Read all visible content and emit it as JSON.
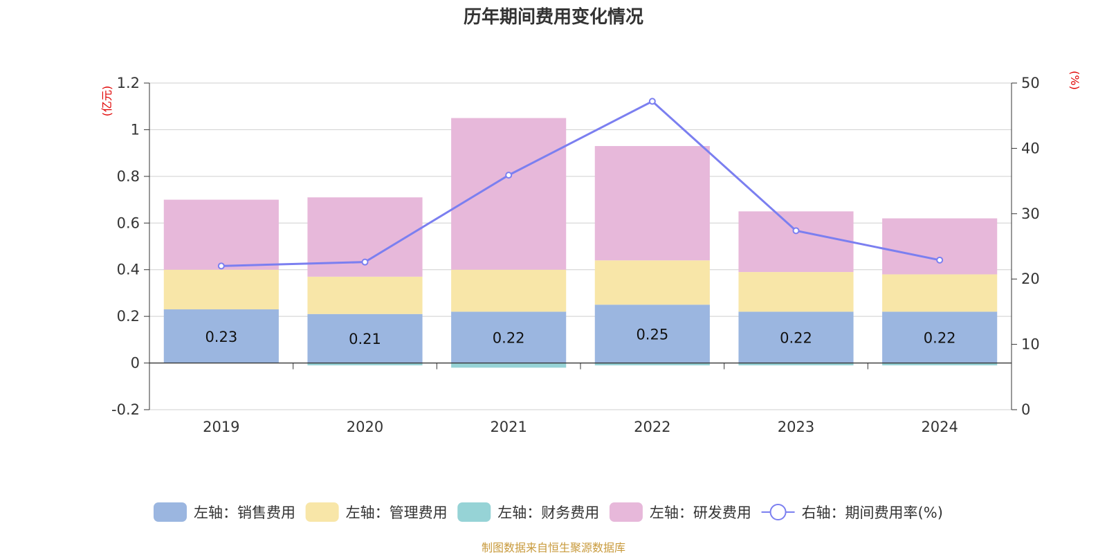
{
  "chart_data": {
    "type": "bar",
    "stacked": true,
    "title": "历年期间费用变化情况",
    "categories": [
      "2019",
      "2020",
      "2021",
      "2022",
      "2023",
      "2024"
    ],
    "left_axis": {
      "unit": "(亿元)",
      "ylim": [
        -0.2,
        1.2
      ],
      "ticks": [
        -0.2,
        0,
        0.2,
        0.4,
        0.6,
        0.8,
        1,
        1.2
      ]
    },
    "right_axis": {
      "unit": "(%)",
      "ylim": [
        0,
        50
      ],
      "ticks": [
        0,
        10,
        20,
        30,
        40,
        50
      ]
    },
    "series": [
      {
        "name": "左轴：销售费用",
        "color": "#9bb6e0",
        "axis": "left",
        "values": [
          0.23,
          0.21,
          0.22,
          0.25,
          0.22,
          0.22
        ],
        "labels": [
          "0.23",
          "0.21",
          "0.22",
          "0.25",
          "0.22",
          "0.22"
        ]
      },
      {
        "name": "左轴：管理费用",
        "color": "#f8e6a8",
        "axis": "left",
        "values": [
          0.17,
          0.16,
          0.18,
          0.19,
          0.17,
          0.16
        ]
      },
      {
        "name": "左轴：财务费用",
        "color": "#96d3d6",
        "axis": "left",
        "values": [
          0.0,
          -0.01,
          -0.02,
          -0.01,
          -0.01,
          -0.01
        ]
      },
      {
        "name": "左轴：研发费用",
        "color": "#e7b8da",
        "axis": "left",
        "values": [
          0.3,
          0.34,
          0.65,
          0.49,
          0.26,
          0.24
        ]
      },
      {
        "name": "右轴：期间费用率(%)",
        "type": "line",
        "color": "#7b7ff0",
        "axis": "right",
        "values": [
          22.0,
          22.6,
          35.9,
          47.2,
          27.4,
          22.9
        ]
      }
    ],
    "legend_position": "bottom",
    "grid": true
  },
  "footer": {
    "source": "制图数据来自恒生聚源数据库"
  }
}
